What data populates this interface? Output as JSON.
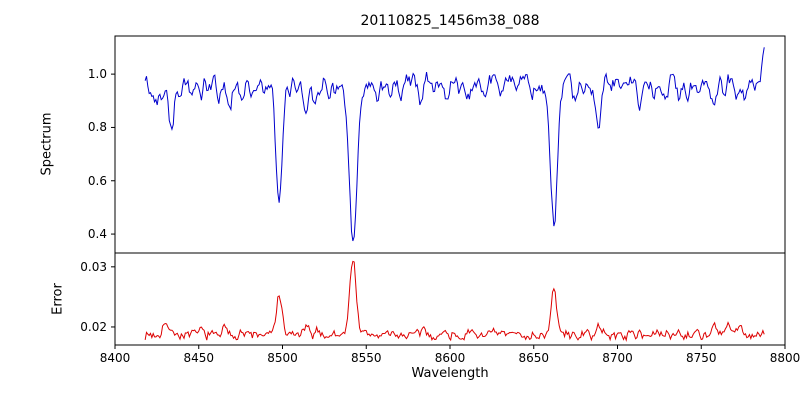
{
  "chart_data": {
    "type": "line",
    "title": "20110825_1456m38_088",
    "xlabel": "Wavelength",
    "legend": "none",
    "grid": false,
    "xlim": [
      8400,
      8800
    ],
    "x_ticks": [
      8400,
      8450,
      8500,
      8550,
      8600,
      8650,
      8700,
      8750,
      8800
    ],
    "x_tick_labels": [
      "8400",
      "8450",
      "8500",
      "8550",
      "8600",
      "8650",
      "8700",
      "8750",
      "8800"
    ],
    "x_sampling": {
      "start": 8418,
      "end": 8788,
      "step": 0.8
    },
    "panels": [
      {
        "name": "spectrum",
        "ylabel": "Spectrum",
        "color": "#0000cc",
        "ylim": [
          0.329,
          1.143
        ],
        "y_ticks": [
          0.4,
          0.6,
          0.8,
          1.0
        ],
        "y_tick_labels": [
          "0.4",
          "0.6",
          "0.8",
          "1.0"
        ],
        "continuum": 0.972,
        "noise": {
          "seed": 42,
          "ar": 0.6,
          "ar_amp": 0.05,
          "hf_amp": 0.02
        },
        "absorption_lines": [
          {
            "center": 8498.0,
            "depth": 0.44,
            "width": 1.8
          },
          {
            "center": 8498.0,
            "depth": 0.04,
            "width": 5.0
          },
          {
            "center": 8542.1,
            "depth": 0.56,
            "width": 2.2
          },
          {
            "center": 8542.1,
            "depth": 0.06,
            "width": 6.5
          },
          {
            "center": 8662.1,
            "depth": 0.51,
            "width": 2.0
          },
          {
            "center": 8662.1,
            "depth": 0.045,
            "width": 5.5
          },
          {
            "center": 8421.5,
            "depth": 0.05,
            "width": 1.2
          },
          {
            "center": 8424.5,
            "depth": 0.07,
            "width": 1.3
          },
          {
            "center": 8428.0,
            "depth": 0.05,
            "width": 1.2
          },
          {
            "center": 8433.8,
            "depth": 0.16,
            "width": 1.5
          },
          {
            "center": 8439.5,
            "depth": 0.06,
            "width": 1.2
          },
          {
            "center": 8446.0,
            "depth": 0.06,
            "width": 1.2
          },
          {
            "center": 8451.8,
            "depth": 0.05,
            "width": 1.1
          },
          {
            "center": 8456.0,
            "depth": 0.04,
            "width": 1.1
          },
          {
            "center": 8462.0,
            "depth": 0.06,
            "width": 1.2
          },
          {
            "center": 8468.3,
            "depth": 0.11,
            "width": 1.4
          },
          {
            "center": 8476.0,
            "depth": 0.06,
            "width": 1.2
          },
          {
            "center": 8481.5,
            "depth": 0.04,
            "width": 1.1
          },
          {
            "center": 8489.0,
            "depth": 0.04,
            "width": 1.1
          },
          {
            "center": 8513.8,
            "depth": 0.11,
            "width": 1.4
          },
          {
            "center": 8519.0,
            "depth": 0.06,
            "width": 1.2
          },
          {
            "center": 8527.0,
            "depth": 0.04,
            "width": 1.1
          },
          {
            "center": 8556.0,
            "depth": 0.05,
            "width": 1.2
          },
          {
            "center": 8564.0,
            "depth": 0.04,
            "width": 1.1
          },
          {
            "center": 8571.5,
            "depth": 0.04,
            "width": 1.1
          },
          {
            "center": 8582.8,
            "depth": 0.07,
            "width": 1.3
          },
          {
            "center": 8590.0,
            "depth": 0.04,
            "width": 1.1
          },
          {
            "center": 8598.2,
            "depth": 0.07,
            "width": 1.3
          },
          {
            "center": 8605.0,
            "depth": 0.04,
            "width": 1.1
          },
          {
            "center": 8611.5,
            "depth": 0.05,
            "width": 1.2
          },
          {
            "center": 8621.8,
            "depth": 0.08,
            "width": 1.3
          },
          {
            "center": 8630.0,
            "depth": 0.04,
            "width": 1.1
          },
          {
            "center": 8640.0,
            "depth": 0.04,
            "width": 1.1
          },
          {
            "center": 8648.5,
            "depth": 0.06,
            "width": 1.2
          },
          {
            "center": 8674.3,
            "depth": 0.08,
            "width": 1.3
          },
          {
            "center": 8679.5,
            "depth": 0.05,
            "width": 1.2
          },
          {
            "center": 8688.6,
            "depth": 0.17,
            "width": 1.5
          },
          {
            "center": 8696.0,
            "depth": 0.04,
            "width": 1.1
          },
          {
            "center": 8702.0,
            "depth": 0.04,
            "width": 1.1
          },
          {
            "center": 8713.2,
            "depth": 0.06,
            "width": 1.2
          },
          {
            "center": 8722.0,
            "depth": 0.04,
            "width": 1.1
          },
          {
            "center": 8729.0,
            "depth": 0.04,
            "width": 1.1
          },
          {
            "center": 8736.3,
            "depth": 0.06,
            "width": 1.2
          },
          {
            "center": 8742.0,
            "depth": 0.04,
            "width": 1.1
          },
          {
            "center": 8747.4,
            "depth": 0.07,
            "width": 1.3
          },
          {
            "center": 8757.6,
            "depth": 0.08,
            "width": 1.3
          },
          {
            "center": 8764.0,
            "depth": 0.05,
            "width": 1.1
          },
          {
            "center": 8771.0,
            "depth": 0.05,
            "width": 1.2
          },
          {
            "center": 8776.5,
            "depth": 0.06,
            "width": 1.2
          },
          {
            "center": 8782.0,
            "depth": 0.04,
            "width": 1.1
          },
          {
            "center": 8787.5,
            "depth": -0.1,
            "width": 1.2
          }
        ]
      },
      {
        "name": "error",
        "ylabel": "Error",
        "color": "#dd0000",
        "ylim": [
          0.017,
          0.0323
        ],
        "y_ticks": [
          0.02,
          0.03
        ],
        "y_tick_labels": [
          "0.02",
          "0.03"
        ],
        "baseline": 0.0187,
        "noise": {
          "seed": 7,
          "ar": 0.5,
          "ar_amp": 0.0012,
          "hf_amp": 0.0006
        },
        "peaks": [
          {
            "center": 8498.0,
            "height": 0.0068,
            "width": 1.6
          },
          {
            "center": 8542.1,
            "height": 0.0128,
            "width": 1.9
          },
          {
            "center": 8662.1,
            "height": 0.0072,
            "width": 1.7
          },
          {
            "center": 8429.5,
            "height": 0.0022,
            "width": 1.4
          },
          {
            "center": 8434.0,
            "height": 0.0012,
            "width": 1.1
          },
          {
            "center": 8452.0,
            "height": 0.0008,
            "width": 1.0
          },
          {
            "center": 8465.0,
            "height": 0.0012,
            "width": 1.2
          },
          {
            "center": 8475.0,
            "height": 0.0009,
            "width": 1.0
          },
          {
            "center": 8514.0,
            "height": 0.0011,
            "width": 1.2
          },
          {
            "center": 8521.0,
            "height": 0.0008,
            "width": 1.0
          },
          {
            "center": 8584.0,
            "height": 0.0007,
            "width": 1.0
          },
          {
            "center": 8598.0,
            "height": 0.0007,
            "width": 1.0
          },
          {
            "center": 8622.0,
            "height": 0.0007,
            "width": 1.0
          },
          {
            "center": 8688.5,
            "height": 0.0014,
            "width": 1.2
          },
          {
            "center": 8713.0,
            "height": 0.0008,
            "width": 1.0
          },
          {
            "center": 8736.0,
            "height": 0.0008,
            "width": 1.0
          },
          {
            "center": 8747.0,
            "height": 0.001,
            "width": 1.1
          },
          {
            "center": 8757.5,
            "height": 0.0013,
            "width": 1.2
          },
          {
            "center": 8766.0,
            "height": 0.0018,
            "width": 1.3
          },
          {
            "center": 8773.0,
            "height": 0.0014,
            "width": 1.2
          }
        ]
      }
    ]
  }
}
